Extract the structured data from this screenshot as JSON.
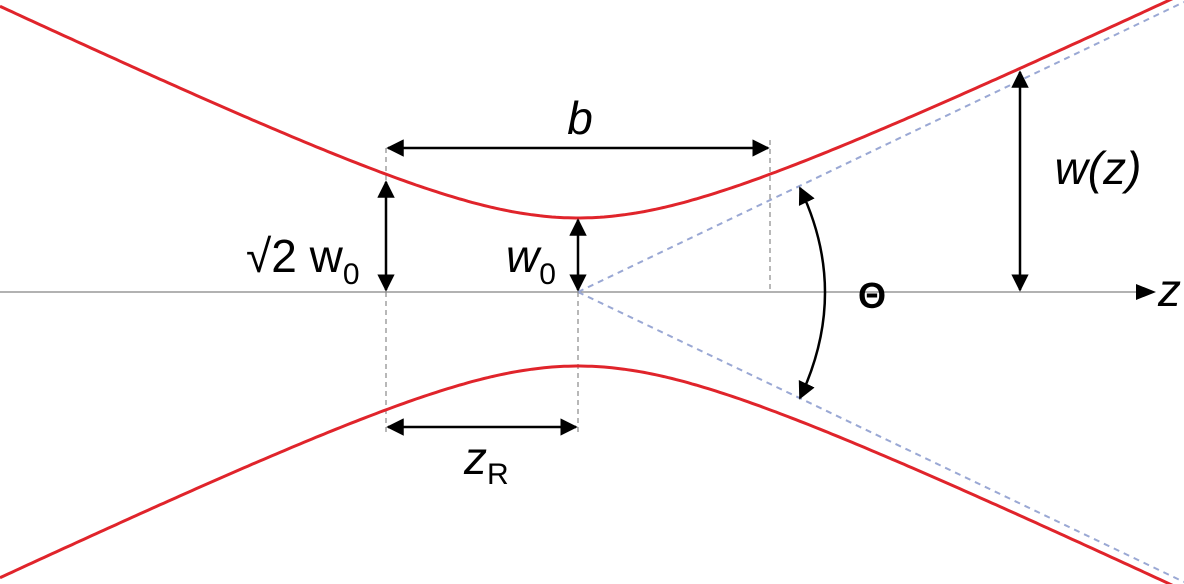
{
  "labels": {
    "b": "b",
    "w_z": "w(z)",
    "sqrt2_w0": {
      "text": "√2 w",
      "sub": "0"
    },
    "w0": {
      "text": "w",
      "sub": "0"
    },
    "z_R": {
      "text": "z",
      "sub": "R"
    },
    "z_axis": "z",
    "theta": "Θ"
  }
}
